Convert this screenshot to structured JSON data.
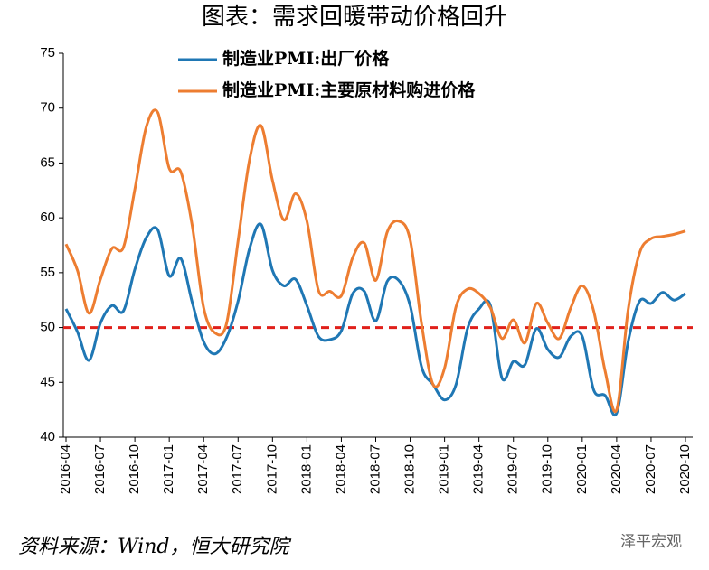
{
  "chart_data": {
    "type": "line",
    "title": "图表：需求回暖带动价格回升",
    "source": "资料来源：Wind，恒大研究院",
    "watermark": "泽平宏观",
    "categories": [
      "2016-04",
      null,
      null,
      "2016-07",
      null,
      null,
      "2016-10",
      null,
      null,
      "2017-01",
      null,
      null,
      "2017-04",
      null,
      null,
      "2017-07",
      null,
      null,
      "2017-10",
      null,
      null,
      "2018-01",
      null,
      null,
      "2018-04",
      null,
      null,
      "2018-07",
      null,
      null,
      "2018-10",
      null,
      null,
      "2019-01",
      null,
      null,
      "2019-04",
      null,
      null,
      "2019-07",
      null,
      null,
      "2019-10",
      null,
      null,
      "2020-01",
      null,
      null,
      "2020-04",
      null,
      null,
      "2020-07",
      null,
      null,
      "2020-10"
    ],
    "series": [
      {
        "name": "制造业PMI:出厂价格",
        "color": "#1f77b4",
        "values": [
          51.7,
          49.6,
          47.0,
          50.4,
          52.0,
          51.5,
          55.3,
          58.2,
          58.9,
          54.7,
          56.3,
          52.3,
          48.7,
          47.6,
          49.1,
          52.4,
          57.2,
          59.4,
          55.2,
          53.8,
          54.4,
          52.0,
          49.2,
          48.9,
          49.7,
          53.1,
          53.3,
          50.6,
          54.2,
          54.3,
          52.0,
          46.4,
          44.8,
          43.4,
          44.8,
          49.9,
          51.7,
          52.0,
          45.4,
          46.9,
          46.6,
          49.9,
          48.0,
          47.3,
          49.2,
          49.2,
          44.3,
          43.8,
          42.2,
          48.7,
          52.4,
          52.2,
          53.2,
          52.5,
          53.1
        ]
      },
      {
        "name": "制造业PMI:主要原材料购进价格",
        "color": "#ed7d31",
        "values": [
          57.6,
          55.2,
          51.3,
          54.4,
          57.2,
          57.3,
          62.6,
          68.3,
          69.6,
          64.5,
          64.2,
          59.3,
          51.8,
          49.5,
          50.4,
          57.9,
          65.3,
          68.4,
          63.4,
          59.8,
          62.2,
          59.7,
          53.4,
          53.3,
          52.9,
          56.4,
          57.7,
          54.3,
          58.7,
          59.7,
          58.0,
          50.3,
          44.8,
          46.3,
          51.9,
          53.5,
          53.1,
          51.8,
          49.0,
          50.7,
          48.6,
          52.2,
          50.4,
          49.0,
          51.8,
          53.8,
          51.5,
          46.0,
          42.5,
          51.6,
          56.8,
          58.1,
          58.3,
          58.5,
          58.8
        ]
      }
    ],
    "reference_line": 50,
    "reference_color": "#e0201b",
    "ylim": [
      40,
      75
    ],
    "yticks": [
      40,
      45,
      50,
      55,
      60,
      65,
      70,
      75
    ],
    "legend": "top"
  }
}
